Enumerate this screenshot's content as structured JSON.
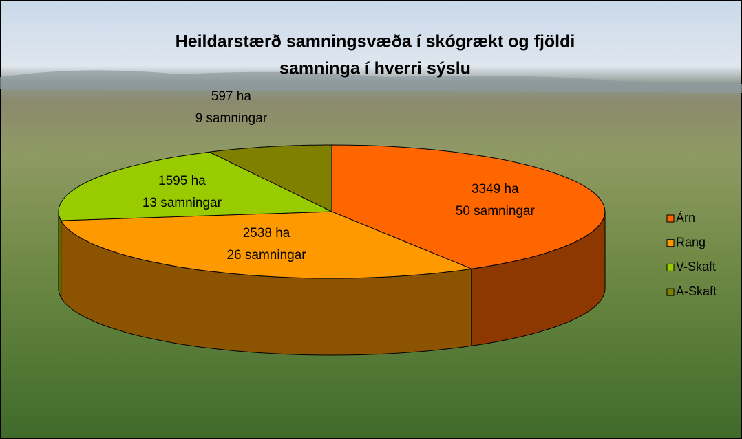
{
  "chart_data": {
    "type": "pie3d",
    "title": [
      "Heildarstærð samningsvæða  í skógrækt og fjöldi",
      "samninga í hverri sýslu"
    ],
    "categories": [
      "Árn",
      "Rang",
      "V-Skaft",
      "A-Skaft"
    ],
    "values": [
      3349,
      2538,
      1595,
      597
    ],
    "value_labels": [
      "3349 ha",
      "2538 ha",
      "1595 ha",
      "597 ha"
    ],
    "counts": [
      50,
      26,
      13,
      9
    ],
    "count_labels": [
      "50 samningar",
      "26 samningar",
      "13 samningar",
      "9 samningar"
    ],
    "colors": [
      "#ff6600",
      "#ff9900",
      "#99cc00",
      "#808000"
    ],
    "legend": "right"
  }
}
